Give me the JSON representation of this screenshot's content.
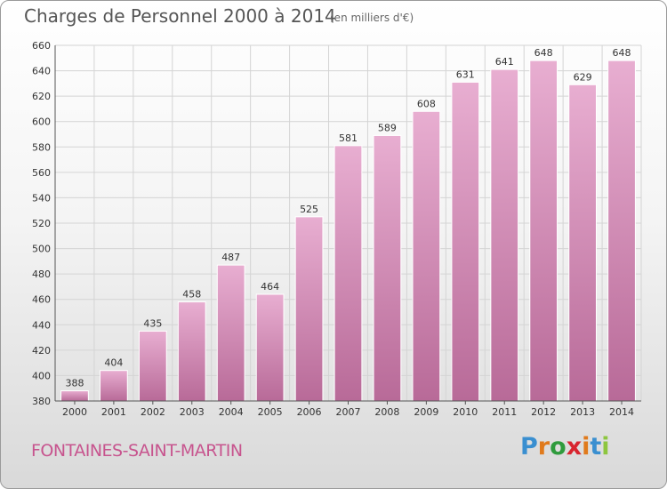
{
  "header": {
    "title": "Charges de Personnel 2000 à 2014",
    "subtitle": "(en milliers d'€)"
  },
  "footer": {
    "town": "FONTAINES-SAINT-MARTIN",
    "logo": {
      "text": "Proxiti",
      "letter_colors": [
        "#3a8fd0",
        "#e07a1c",
        "#2f9b3d",
        "#d8252f",
        "#e07a1c",
        "#3a8fd0",
        "#8dc63f"
      ]
    }
  },
  "colors": {
    "bar": "#d98cb9",
    "bar_light": "#e8aed1",
    "bar_dark": "#b86a98",
    "grid": "#d4d4d4",
    "axis": "#555555",
    "label": "#333333"
  },
  "chart_data": {
    "type": "bar",
    "categories": [
      "2000",
      "2001",
      "2002",
      "2003",
      "2004",
      "2005",
      "2006",
      "2007",
      "2008",
      "2009",
      "2010",
      "2011",
      "2012",
      "2013",
      "2014"
    ],
    "values": [
      388,
      404,
      435,
      458,
      487,
      464,
      525,
      581,
      589,
      608,
      631,
      641,
      648,
      629,
      648
    ],
    "ylim": [
      380,
      660
    ],
    "yticks": [
      380,
      400,
      420,
      440,
      460,
      480,
      500,
      520,
      540,
      560,
      580,
      600,
      620,
      640,
      660
    ],
    "grid": true,
    "xlabel": "",
    "ylabel": ""
  }
}
